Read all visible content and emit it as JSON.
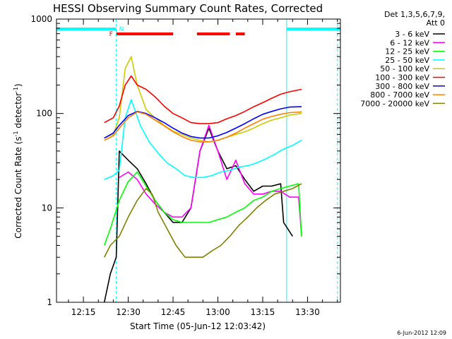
{
  "chart_data": {
    "type": "line",
    "title": "HESSI Observing Summary Count Rates, Corrected",
    "xlabel": "Start Time (05-Jun-12 12:03:42)",
    "ylabel_main": "Corrected Count Rate (s",
    "ylabel_sup1": "-1",
    "ylabel_mid": " detector",
    "ylabel_sup2": "-1",
    "ylabel_end": ")",
    "yscale": "log",
    "ylim": [
      1,
      1000
    ],
    "xlim": [
      "12:06",
      "13:41"
    ],
    "x_ticks": [
      "12:15",
      "12:30",
      "12:45",
      "13:00",
      "13:15",
      "13:30"
    ],
    "y_ticks": [
      "1",
      "10",
      "100",
      "1000"
    ],
    "legend_header": [
      "Det 1,3,5,6,7,9,",
      "Att 0"
    ],
    "timestamp": "6-Jun-2012 12:09",
    "flags": {
      "night_label": "N",
      "flare_label": "F",
      "night_color": "#00ffff",
      "flare_color": "#ff0000",
      "night_bars": [
        [
          "12:06",
          "12:26"
        ],
        [
          "13:23",
          "13:41"
        ]
      ],
      "flare_bars": [
        [
          "12:26",
          "12:45"
        ],
        [
          "12:53",
          "13:04"
        ],
        [
          "13:06",
          "13:09"
        ]
      ],
      "night_lines": [
        {
          "t": "12:26",
          "style": "dashed"
        },
        {
          "t": "13:23",
          "style": "solid"
        },
        {
          "t": "13:40",
          "style": "dashed"
        }
      ]
    },
    "series": [
      {
        "name": "3 - 6 keV",
        "color": "#000000",
        "points": [
          [
            "12:22",
            1
          ],
          [
            "12:24",
            2
          ],
          [
            "12:26",
            3
          ],
          [
            "12:27",
            40
          ],
          [
            "12:30",
            32
          ],
          [
            "12:33",
            26
          ],
          [
            "12:36",
            18
          ],
          [
            "12:39",
            12
          ],
          [
            "12:42",
            9
          ],
          [
            "12:45",
            7
          ],
          [
            "12:48",
            7
          ],
          [
            "12:51",
            10
          ],
          [
            "12:54",
            40
          ],
          [
            "12:57",
            70
          ],
          [
            "13:00",
            40
          ],
          [
            "13:03",
            26
          ],
          [
            "13:06",
            28
          ],
          [
            "13:09",
            20
          ],
          [
            "13:12",
            15
          ],
          [
            "13:15",
            17
          ],
          [
            "13:18",
            17
          ],
          [
            "13:21",
            18
          ],
          [
            "13:22",
            7
          ],
          [
            "13:25",
            5
          ]
        ]
      },
      {
        "name": "6 - 12 keV",
        "color": "#ff00ff",
        "points": [
          [
            "12:27",
            21
          ],
          [
            "12:30",
            24
          ],
          [
            "12:33",
            20
          ],
          [
            "12:36",
            14
          ],
          [
            "12:39",
            11
          ],
          [
            "12:42",
            9
          ],
          [
            "12:45",
            8
          ],
          [
            "12:48",
            8
          ],
          [
            "12:51",
            10
          ],
          [
            "12:54",
            40
          ],
          [
            "12:57",
            75
          ],
          [
            "13:00",
            40
          ],
          [
            "13:03",
            20
          ],
          [
            "13:06",
            32
          ],
          [
            "13:09",
            18
          ],
          [
            "13:12",
            14
          ],
          [
            "13:15",
            14
          ],
          [
            "13:18",
            15
          ],
          [
            "13:21",
            15
          ],
          [
            "13:24",
            13
          ],
          [
            "13:27",
            13
          ],
          [
            "13:28",
            5
          ]
        ]
      },
      {
        "name": "12 - 25 keV",
        "color": "#00ff00",
        "points": [
          [
            "12:22",
            4
          ],
          [
            "12:24",
            6
          ],
          [
            "12:27",
            12
          ],
          [
            "12:30",
            19
          ],
          [
            "12:33",
            24
          ],
          [
            "12:36",
            17
          ],
          [
            "12:39",
            12
          ],
          [
            "12:42",
            9
          ],
          [
            "12:45",
            7.5
          ],
          [
            "12:48",
            7
          ],
          [
            "12:51",
            7
          ],
          [
            "12:54",
            7
          ],
          [
            "12:57",
            7
          ],
          [
            "13:00",
            7.5
          ],
          [
            "13:03",
            8
          ],
          [
            "13:06",
            9
          ],
          [
            "13:09",
            10
          ],
          [
            "13:12",
            12
          ],
          [
            "13:15",
            13
          ],
          [
            "13:18",
            15
          ],
          [
            "13:21",
            16
          ],
          [
            "13:24",
            17
          ],
          [
            "13:27",
            18
          ],
          [
            "13:28",
            5
          ]
        ]
      },
      {
        "name": "25 - 50 keV",
        "color": "#00ffff",
        "points": [
          [
            "12:22",
            20
          ],
          [
            "12:25",
            22
          ],
          [
            "12:27",
            25
          ],
          [
            "12:29",
            90
          ],
          [
            "12:31",
            140
          ],
          [
            "12:34",
            75
          ],
          [
            "12:37",
            50
          ],
          [
            "12:40",
            38
          ],
          [
            "12:43",
            30
          ],
          [
            "12:46",
            26
          ],
          [
            "12:49",
            22
          ],
          [
            "12:52",
            21
          ],
          [
            "12:55",
            21
          ],
          [
            "12:58",
            22
          ],
          [
            "13:01",
            24
          ],
          [
            "13:04",
            25
          ],
          [
            "13:07",
            27
          ],
          [
            "13:10",
            28
          ],
          [
            "13:13",
            30
          ],
          [
            "13:16",
            33
          ],
          [
            "13:19",
            37
          ],
          [
            "13:22",
            42
          ],
          [
            "13:25",
            46
          ],
          [
            "13:28",
            52
          ]
        ]
      },
      {
        "name": "50 - 100 keV",
        "color": "#cccc00",
        "points": [
          [
            "12:22",
            55
          ],
          [
            "12:25",
            60
          ],
          [
            "12:27",
            90
          ],
          [
            "12:29",
            300
          ],
          [
            "12:31",
            400
          ],
          [
            "12:33",
            200
          ],
          [
            "12:36",
            110
          ],
          [
            "12:39",
            90
          ],
          [
            "12:42",
            75
          ],
          [
            "12:45",
            65
          ],
          [
            "12:48",
            60
          ],
          [
            "12:51",
            55
          ],
          [
            "12:54",
            52
          ],
          [
            "12:57",
            50
          ],
          [
            "13:00",
            52
          ],
          [
            "13:03",
            56
          ],
          [
            "13:06",
            60
          ],
          [
            "13:09",
            64
          ],
          [
            "13:12",
            70
          ],
          [
            "13:15",
            78
          ],
          [
            "13:18",
            85
          ],
          [
            "13:21",
            90
          ],
          [
            "13:24",
            96
          ],
          [
            "13:28",
            100
          ]
        ]
      },
      {
        "name": "100 - 300 keV",
        "color": "#ff0000",
        "points": [
          [
            "12:22",
            80
          ],
          [
            "12:25",
            90
          ],
          [
            "12:27",
            120
          ],
          [
            "12:29",
            200
          ],
          [
            "12:31",
            250
          ],
          [
            "12:33",
            200
          ],
          [
            "12:36",
            180
          ],
          [
            "12:39",
            150
          ],
          [
            "12:42",
            120
          ],
          [
            "12:45",
            100
          ],
          [
            "12:48",
            90
          ],
          [
            "12:51",
            80
          ],
          [
            "12:54",
            78
          ],
          [
            "12:57",
            78
          ],
          [
            "13:00",
            80
          ],
          [
            "13:03",
            88
          ],
          [
            "13:06",
            95
          ],
          [
            "13:09",
            105
          ],
          [
            "13:12",
            118
          ],
          [
            "13:15",
            130
          ],
          [
            "13:18",
            145
          ],
          [
            "13:21",
            160
          ],
          [
            "13:24",
            170
          ],
          [
            "13:28",
            180
          ]
        ]
      },
      {
        "name": "300 - 800 keV",
        "color": "#0000ff",
        "points": [
          [
            "12:22",
            55
          ],
          [
            "12:25",
            62
          ],
          [
            "12:27",
            75
          ],
          [
            "12:30",
            95
          ],
          [
            "12:33",
            105
          ],
          [
            "12:36",
            100
          ],
          [
            "12:39",
            90
          ],
          [
            "12:42",
            80
          ],
          [
            "12:45",
            70
          ],
          [
            "12:48",
            62
          ],
          [
            "12:51",
            57
          ],
          [
            "12:54",
            55
          ],
          [
            "12:57",
            55
          ],
          [
            "13:00",
            58
          ],
          [
            "13:03",
            63
          ],
          [
            "13:06",
            70
          ],
          [
            "13:09",
            78
          ],
          [
            "13:12",
            88
          ],
          [
            "13:15",
            98
          ],
          [
            "13:18",
            105
          ],
          [
            "13:21",
            112
          ],
          [
            "13:24",
            117
          ],
          [
            "13:28",
            118
          ]
        ]
      },
      {
        "name": "800 - 7000 keV",
        "color": "#ff8000",
        "points": [
          [
            "12:22",
            52
          ],
          [
            "12:25",
            58
          ],
          [
            "12:27",
            70
          ],
          [
            "12:30",
            90
          ],
          [
            "12:33",
            104
          ],
          [
            "12:36",
            98
          ],
          [
            "12:39",
            85
          ],
          [
            "12:42",
            74
          ],
          [
            "12:45",
            64
          ],
          [
            "12:48",
            57
          ],
          [
            "12:51",
            52
          ],
          [
            "12:54",
            50
          ],
          [
            "12:57",
            50
          ],
          [
            "13:00",
            52
          ],
          [
            "13:03",
            56
          ],
          [
            "13:06",
            62
          ],
          [
            "13:09",
            70
          ],
          [
            "13:12",
            78
          ],
          [
            "13:15",
            87
          ],
          [
            "13:18",
            93
          ],
          [
            "13:21",
            98
          ],
          [
            "13:24",
            102
          ],
          [
            "13:28",
            104
          ]
        ]
      },
      {
        "name": "7000 - 20000 keV",
        "color": "#808000",
        "points": [
          [
            "12:22",
            3
          ],
          [
            "12:24",
            4
          ],
          [
            "12:27",
            5
          ],
          [
            "12:30",
            8
          ],
          [
            "12:33",
            12
          ],
          [
            "12:36",
            16
          ],
          [
            "12:38",
            14
          ],
          [
            "12:40",
            9
          ],
          [
            "12:43",
            6
          ],
          [
            "12:46",
            4
          ],
          [
            "12:49",
            3
          ],
          [
            "12:52",
            3
          ],
          [
            "12:55",
            3
          ],
          [
            "12:58",
            3.5
          ],
          [
            "13:01",
            4
          ],
          [
            "13:04",
            5
          ],
          [
            "13:07",
            6.5
          ],
          [
            "13:10",
            8
          ],
          [
            "13:13",
            10
          ],
          [
            "13:16",
            12
          ],
          [
            "13:19",
            14
          ],
          [
            "13:22",
            15
          ],
          [
            "13:25",
            16
          ],
          [
            "13:28",
            18
          ]
        ]
      }
    ]
  }
}
